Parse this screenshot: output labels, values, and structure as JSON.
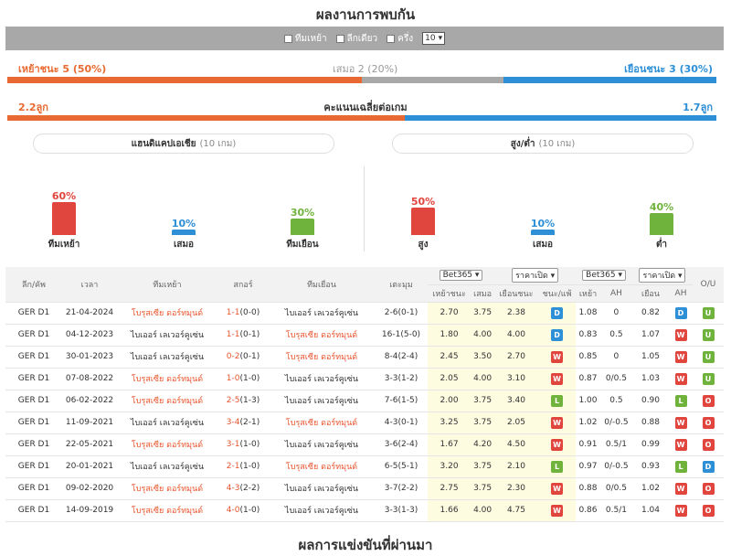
{
  "title": "ผลงานการพบกัน",
  "filters": {
    "home": "ทีมเหย้า",
    "league": "ลีกเดียว",
    "half": "ครึ่ง",
    "count": "10"
  },
  "summary": {
    "home_win": "เหย้าชนะ 5 (50%)",
    "draw": "เสมอ 2 (20%)",
    "away_win": "เยือนชนะ 3 (30%)",
    "home_pct": 50,
    "draw_pct": 20,
    "away_pct": 30,
    "home_color": "#e86a32",
    "draw_color": "#a8a8a8",
    "away_color": "#2d8fd6"
  },
  "avg": {
    "home": "2.2ลูก",
    "label": "คะแนนเฉลี่ยต่อเกม",
    "away": "1.7ลูก",
    "home_frac": 0.56
  },
  "handicap": {
    "title": "แฮนดิแคปเอเชีย",
    "games": "(10 เกม)",
    "cols": [
      {
        "pct": "60%",
        "label": "ทีมเหย้า",
        "value": 60,
        "color": "#e0453e"
      },
      {
        "pct": "10%",
        "label": "เสมอ",
        "value": 10,
        "color": "#2d8fd6"
      },
      {
        "pct": "30%",
        "label": "ทีมเยือน",
        "value": 30,
        "color": "#6fb33d"
      }
    ]
  },
  "overunder": {
    "title": "สูง/ต่ำ",
    "games": "(10 เกม)",
    "cols": [
      {
        "pct": "50%",
        "label": "สูง",
        "value": 50,
        "color": "#e0453e"
      },
      {
        "pct": "10%",
        "label": "เสมอ",
        "value": 10,
        "color": "#2d8fd6"
      },
      {
        "pct": "40%",
        "label": "ต่ำ",
        "value": 40,
        "color": "#6fb33d"
      }
    ]
  },
  "table": {
    "headers": {
      "league": "ลีก/คัพ",
      "time": "เวลา",
      "home": "ทีมเหย้า",
      "score": "สกอร์",
      "away": "ทีมเยือน",
      "corners": "เตะมุม",
      "bookie1": "Bet365",
      "open1": "ราคาเปิด",
      "bookie2": "Bet365",
      "open2": "ราคาเปิด",
      "ou": "O/U"
    },
    "sub": {
      "h": "เหย้าชนะ",
      "d": "เสมอ",
      "a": "เยือนชนะ",
      "wl": "ชนะ/แพ้",
      "h2": "เหย้า",
      "ah": "AH",
      "a2": "เยือน",
      "ah2": "AH"
    },
    "rows": [
      {
        "league": "GER D1",
        "date": "21-04-2024",
        "home": "โบรุสเซีย ดอร์ทมุนด์",
        "score": "1-1",
        "ht": "(0-0)",
        "away": "ไบเออร์ เลเวอร์คูเซ่น",
        "corners": "2-6(0-1)",
        "o1": "2.70",
        "o2": "3.75",
        "o3": "2.38",
        "r1": "D",
        "h": "1.08",
        "ah": "0",
        "a": "0.82",
        "r2": "D",
        "r3": "U",
        "home_red": true
      },
      {
        "league": "GER D1",
        "date": "04-12-2023",
        "home": "ไบเออร์ เลเวอร์คูเซ่น",
        "score": "1-1",
        "ht": "(0-1)",
        "away": "โบรุสเซีย ดอร์ทมุนด์",
        "corners": "16-1(5-0)",
        "o1": "1.80",
        "o2": "4.00",
        "o3": "4.00",
        "r1": "D",
        "h": "0.83",
        "ah": "0.5",
        "a": "1.07",
        "r2": "W",
        "r3": "U",
        "home_red": false
      },
      {
        "league": "GER D1",
        "date": "30-01-2023",
        "home": "ไบเออร์ เลเวอร์คูเซ่น",
        "score": "0-2",
        "ht": "(0-1)",
        "away": "โบรุสเซีย ดอร์ทมุนด์",
        "corners": "8-4(2-4)",
        "o1": "2.45",
        "o2": "3.50",
        "o3": "2.70",
        "r1": "W",
        "h": "0.85",
        "ah": "0",
        "a": "1.05",
        "r2": "W",
        "r3": "U",
        "home_red": false
      },
      {
        "league": "GER D1",
        "date": "07-08-2022",
        "home": "โบรุสเซีย ดอร์ทมุนด์",
        "score": "1-0",
        "ht": "(1-0)",
        "away": "ไบเออร์ เลเวอร์คูเซ่น",
        "corners": "3-3(1-2)",
        "o1": "2.05",
        "o2": "4.00",
        "o3": "3.10",
        "r1": "W",
        "h": "0.87",
        "ah": "0/0.5",
        "a": "1.03",
        "r2": "W",
        "r3": "U",
        "home_red": true
      },
      {
        "league": "GER D1",
        "date": "06-02-2022",
        "home": "โบรุสเซีย ดอร์ทมุนด์",
        "score": "2-5",
        "ht": "(1-3)",
        "away": "ไบเออร์ เลเวอร์คูเซ่น",
        "corners": "7-6(1-5)",
        "o1": "2.00",
        "o2": "3.75",
        "o3": "3.40",
        "r1": "L",
        "h": "1.00",
        "ah": "0.5",
        "a": "0.90",
        "r2": "L",
        "r3": "O",
        "home_red": true
      },
      {
        "league": "GER D1",
        "date": "11-09-2021",
        "home": "ไบเออร์ เลเวอร์คูเซ่น",
        "score": "3-4",
        "ht": "(2-1)",
        "away": "โบรุสเซีย ดอร์ทมุนด์",
        "corners": "4-3(0-1)",
        "o1": "3.25",
        "o2": "3.75",
        "o3": "2.05",
        "r1": "W",
        "h": "1.02",
        "ah": "0/-0.5",
        "a": "0.88",
        "r2": "W",
        "r3": "O",
        "home_red": false
      },
      {
        "league": "GER D1",
        "date": "22-05-2021",
        "home": "โบรุสเซีย ดอร์ทมุนด์",
        "score": "3-1",
        "ht": "(1-0)",
        "away": "ไบเออร์ เลเวอร์คูเซ่น",
        "corners": "3-6(2-4)",
        "o1": "1.67",
        "o2": "4.20",
        "o3": "4.50",
        "r1": "W",
        "h": "0.91",
        "ah": "0.5/1",
        "a": "0.99",
        "r2": "W",
        "r3": "O",
        "home_red": true
      },
      {
        "league": "GER D1",
        "date": "20-01-2021",
        "home": "ไบเออร์ เลเวอร์คูเซ่น",
        "score": "2-1",
        "ht": "(1-0)",
        "away": "โบรุสเซีย ดอร์ทมุนด์",
        "corners": "6-5(5-1)",
        "o1": "3.20",
        "o2": "3.75",
        "o3": "2.10",
        "r1": "L",
        "h": "0.97",
        "ah": "0/-0.5",
        "a": "0.93",
        "r2": "L",
        "r3": "D",
        "home_red": false
      },
      {
        "league": "GER D1",
        "date": "09-02-2020",
        "home": "โบรุสเซีย ดอร์ทมุนด์",
        "score": "4-3",
        "ht": "(2-2)",
        "away": "ไบเออร์ เลเวอร์คูเซ่น",
        "corners": "3-7(2-2)",
        "o1": "2.75",
        "o2": "3.75",
        "o3": "2.30",
        "r1": "W",
        "h": "0.88",
        "ah": "0/0.5",
        "a": "1.02",
        "r2": "W",
        "r3": "O",
        "home_red": true
      },
      {
        "league": "GER D1",
        "date": "14-09-2019",
        "home": "โบรุสเซีย ดอร์ทมุนด์",
        "score": "4-0",
        "ht": "(1-0)",
        "away": "ไบเออร์ เลเวอร์คูเซ่น",
        "corners": "3-3(1-3)",
        "o1": "1.66",
        "o2": "4.00",
        "o3": "4.75",
        "r1": "W",
        "h": "0.86",
        "ah": "0.5/1",
        "a": "1.04",
        "r2": "W",
        "r3": "O",
        "home_red": true
      }
    ]
  },
  "footer": "ผลการแข่งขันที่ผ่านมา"
}
